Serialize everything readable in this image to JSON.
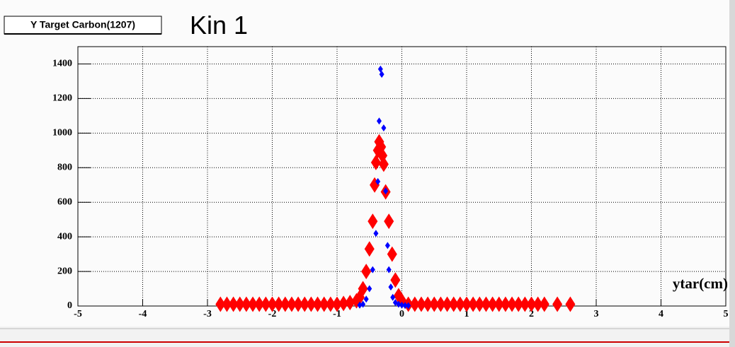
{
  "chart_data": {
    "type": "scatter",
    "title": "Y Target Carbon(1207)",
    "annotation": "Kin 1",
    "x_label": "ytar(cm)",
    "xlim": [
      -5,
      5
    ],
    "ylim": [
      0,
      1500
    ],
    "xticks": [
      -5,
      -4,
      -3,
      -2,
      -1,
      0,
      1,
      2,
      3,
      4,
      5
    ],
    "yticks": [
      0,
      200,
      400,
      600,
      800,
      1000,
      1200,
      1400
    ],
    "grid": true,
    "series": [
      {
        "color": "#ff0000",
        "marker": "large",
        "x": [
          -2.8,
          -2.7,
          -2.6,
          -2.5,
          -2.4,
          -2.3,
          -2.2,
          -2.1,
          -2.0,
          -1.9,
          -1.8,
          -1.7,
          -1.6,
          -1.5,
          -1.4,
          -1.3,
          -1.2,
          -1.1,
          -1.0,
          -0.9,
          -0.8,
          -0.7,
          -0.65,
          -0.6,
          -0.55,
          -0.5,
          -0.45,
          -0.42,
          -0.4,
          -0.37,
          -0.35,
          -0.32,
          -0.3,
          -0.28,
          -0.25,
          -0.2,
          -0.15,
          -0.1,
          -0.05,
          0.0,
          0.1,
          0.2,
          0.3,
          0.4,
          0.5,
          0.6,
          0.7,
          0.8,
          0.9,
          1.0,
          1.1,
          1.2,
          1.3,
          1.4,
          1.5,
          1.6,
          1.7,
          1.8,
          1.9,
          2.0,
          2.1,
          2.2,
          2.4,
          2.6
        ],
        "values": [
          10,
          10,
          10,
          10,
          10,
          10,
          10,
          10,
          10,
          10,
          10,
          10,
          10,
          10,
          10,
          10,
          10,
          10,
          10,
          15,
          20,
          30,
          50,
          100,
          200,
          330,
          490,
          700,
          830,
          900,
          950,
          920,
          870,
          820,
          660,
          490,
          300,
          150,
          60,
          30,
          10,
          10,
          10,
          10,
          10,
          10,
          10,
          10,
          10,
          10,
          10,
          10,
          10,
          10,
          10,
          10,
          10,
          10,
          10,
          10,
          10,
          10,
          10,
          10
        ]
      },
      {
        "color": "#0000ff",
        "marker": "small",
        "x": [
          -0.65,
          -0.6,
          -0.55,
          -0.5,
          -0.45,
          -0.4,
          -0.37,
          -0.35,
          -0.33,
          -0.31,
          -0.28,
          -0.25,
          -0.22,
          -0.2,
          -0.17,
          -0.14,
          -0.1,
          -0.05,
          0.0,
          0.05,
          0.1
        ],
        "values": [
          5,
          10,
          40,
          100,
          210,
          420,
          720,
          1070,
          1370,
          1340,
          1030,
          665,
          350,
          210,
          110,
          50,
          20,
          10,
          5,
          3,
          2
        ]
      }
    ]
  }
}
